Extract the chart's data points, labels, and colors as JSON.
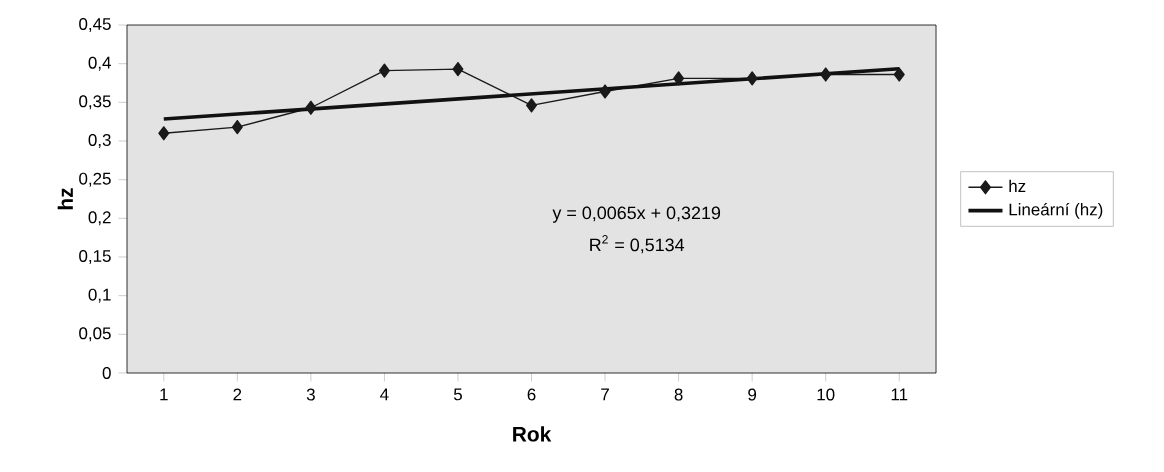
{
  "chart_data": {
    "type": "line",
    "xlabel": "Rok",
    "ylabel": "hz",
    "categories": [
      "1",
      "2",
      "3",
      "4",
      "5",
      "6",
      "7",
      "8",
      "9",
      "10",
      "11"
    ],
    "series": [
      {
        "name": "hz",
        "color": "#1a1a1a",
        "marker": "diamond",
        "values": [
          0.31,
          0.318,
          0.343,
          0.391,
          0.393,
          0.346,
          0.364,
          0.381,
          0.381,
          0.386,
          0.386
        ]
      },
      {
        "name": "Lineární (hz)",
        "type": "line",
        "color": "#111111",
        "x": [
          "1",
          "11"
        ],
        "values": [
          0.3284,
          0.3934
        ]
      }
    ],
    "ylim": [
      0,
      0.45
    ],
    "yticks": [
      0,
      {
        "value": 0.05,
        "label": "0,05"
      },
      {
        "value": 0.1,
        "label": "0,1"
      },
      {
        "value": 0.15,
        "label": "0,15"
      },
      {
        "value": 0.2,
        "label": "0,2"
      },
      {
        "value": 0.25,
        "label": "0,25"
      },
      {
        "value": 0.3,
        "label": "0,3"
      },
      {
        "value": 0.35,
        "label": "0,35"
      },
      {
        "value": 0.4,
        "label": "0,4"
      },
      {
        "value": 0.45,
        "label": "0,45"
      }
    ],
    "annotations": [
      "y = 0,0065x + 0,3219",
      "R$^{2}$ = 0,5134"
    ],
    "legend": "right"
  }
}
